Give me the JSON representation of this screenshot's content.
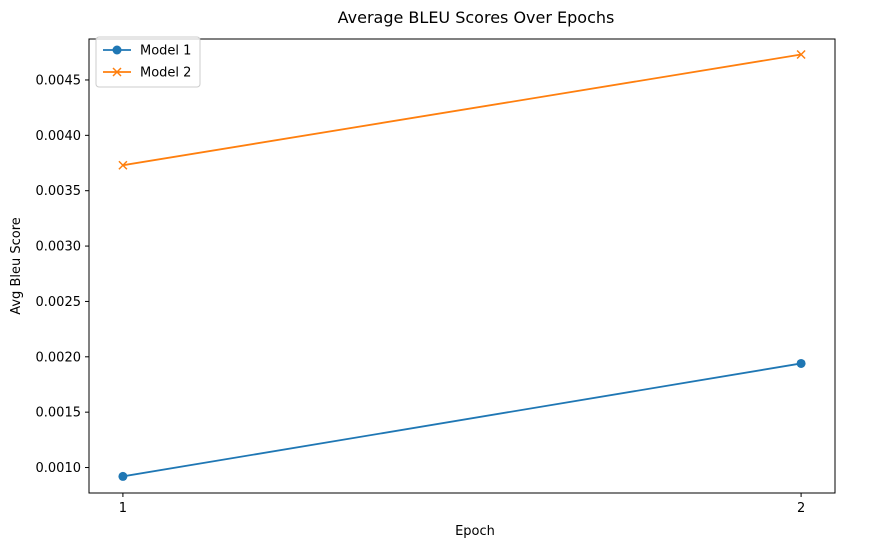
{
  "chart_data": {
    "type": "line",
    "title": "Average BLEU Scores Over Epochs",
    "xlabel": "Epoch",
    "ylabel": "Avg Bleu Score",
    "x": [
      1,
      2
    ],
    "xticks": [
      "1",
      "2"
    ],
    "xlim": [
      0.95,
      2.05
    ],
    "yticks": [
      "0.0010",
      "0.0015",
      "0.0020",
      "0.0025",
      "0.0030",
      "0.0035",
      "0.0040",
      "0.0045"
    ],
    "ylim": [
      0.00077,
      0.00487
    ],
    "grid": false,
    "legend_position": "top-left",
    "series": [
      {
        "name": "Model 1",
        "values": [
          0.00092,
          0.00194
        ],
        "color": "#1f77b4",
        "marker": "circle"
      },
      {
        "name": "Model 2",
        "values": [
          0.00373,
          0.00473
        ],
        "color": "#ff7f0e",
        "marker": "x"
      }
    ]
  }
}
